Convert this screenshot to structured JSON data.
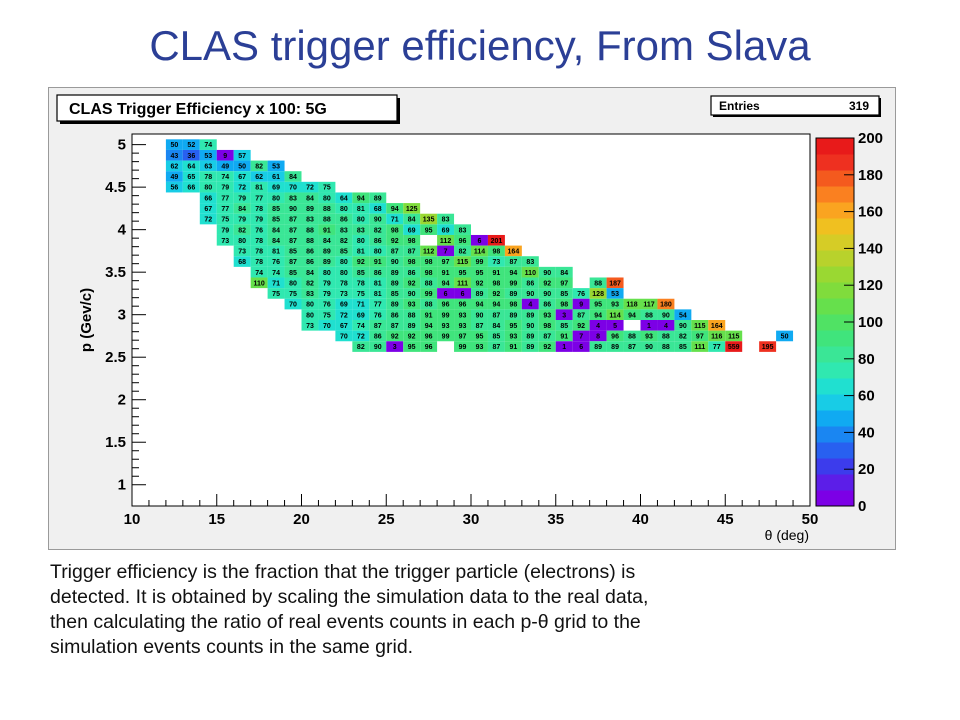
{
  "slide_title": "CLAS trigger efficiency, From Slava",
  "caption_lines": [
    "Trigger efficiency is the fraction that the trigger particle (electrons) is",
    "detected.  It is obtained by scaling the simulation data to the real data,",
    "then calculating the ratio of real events counts in each p-θ grid to the",
    "simulation events counts in the same grid."
  ],
  "chart_data": {
    "type": "heatmap",
    "title": "CLAS Trigger Efficiency x 100: 5G",
    "stats_box": {
      "label": "Entries",
      "value": "319"
    },
    "xlabel": "θ (deg)",
    "ylabel": "p (Gev/c)",
    "xlim": [
      10,
      50
    ],
    "ylim": [
      0.75,
      5.125
    ],
    "x_ticks": [
      10,
      15,
      20,
      25,
      30,
      35,
      40,
      45,
      50
    ],
    "x_tick_labels": [
      "10",
      "15",
      "20",
      "25",
      "30",
      "35",
      "40",
      "45",
      "50"
    ],
    "y_ticks": [
      1,
      1.5,
      2,
      2.5,
      3,
      3.5,
      4,
      4.5,
      5
    ],
    "y_tick_labels": [
      "1",
      "1.5",
      "2",
      "2.5",
      "3",
      "3.5",
      "4",
      "4.5",
      "5"
    ],
    "bin_width_theta": 1,
    "bin_height_p": 0.125,
    "color_scale": {
      "range": [
        0,
        200
      ],
      "ticks": [
        0,
        20,
        40,
        60,
        80,
        100,
        120,
        140,
        160,
        180,
        200
      ],
      "tick_labels": [
        "0",
        "20",
        "40",
        "60",
        "80",
        "100",
        "120",
        "140",
        "160",
        "180",
        "200"
      ]
    },
    "rows": [
      {
        "p": 5.0,
        "theta_start": 12,
        "values": [
          50,
          52,
          74
        ]
      },
      {
        "p": 4.875,
        "theta_start": 12,
        "values": [
          43,
          36,
          53,
          9,
          57
        ]
      },
      {
        "p": 4.75,
        "theta_start": 12,
        "values": [
          62,
          64,
          63,
          49,
          50,
          82,
          53
        ]
      },
      {
        "p": 4.625,
        "theta_start": 12,
        "values": [
          49,
          65,
          78,
          74,
          67,
          62,
          61,
          84
        ]
      },
      {
        "p": 4.5,
        "theta_start": 12,
        "values": [
          56,
          66,
          80,
          79,
          72,
          81,
          69,
          70,
          72,
          75
        ]
      },
      {
        "p": 4.375,
        "theta_start": 14,
        "values": [
          66,
          77,
          79,
          77,
          80,
          83,
          84,
          80,
          64,
          94,
          89
        ]
      },
      {
        "p": 4.25,
        "theta_start": 14,
        "values": [
          67,
          77,
          84,
          78,
          85,
          90,
          89,
          88,
          80,
          81,
          68,
          94,
          125
        ]
      },
      {
        "p": 4.125,
        "theta_start": 14,
        "values": [
          72,
          75,
          79,
          79,
          85,
          87,
          83,
          88,
          86,
          80,
          90,
          71,
          84,
          135,
          83
        ]
      },
      {
        "p": 4.0,
        "theta_start": 15,
        "values": [
          79,
          82,
          76,
          84,
          87,
          88,
          91,
          83,
          83,
          82,
          98,
          69,
          95,
          69,
          83
        ]
      },
      {
        "p": 3.875,
        "theta_start": 15,
        "values": [
          73,
          80,
          78,
          84,
          87,
          88,
          84,
          82,
          80,
          86,
          92,
          98,
          null,
          112,
          96,
          6,
          201
        ]
      },
      {
        "p": 3.75,
        "theta_start": 16,
        "values": [
          73,
          78,
          81,
          85,
          86,
          89,
          85,
          81,
          80,
          87,
          87,
          112,
          7,
          82,
          114,
          98,
          164
        ]
      },
      {
        "p": 3.625,
        "theta_start": 16,
        "values": [
          68,
          78,
          76,
          87,
          86,
          89,
          80,
          92,
          91,
          90,
          98,
          98,
          97,
          115,
          99,
          73,
          87,
          83
        ]
      },
      {
        "p": 3.5,
        "theta_start": 17,
        "values": [
          74,
          74,
          85,
          84,
          80,
          80,
          85,
          86,
          89,
          86,
          98,
          91,
          95,
          95,
          91,
          94,
          110,
          90,
          84
        ]
      },
      {
        "p": 3.375,
        "theta_start": 17,
        "values": [
          110,
          71,
          80,
          82,
          79,
          78,
          78,
          81,
          89,
          92,
          88,
          94,
          111,
          92,
          98,
          99,
          86,
          92,
          97,
          null,
          88,
          187
        ]
      },
      {
        "p": 3.25,
        "theta_start": 18,
        "values": [
          75,
          75,
          83,
          79,
          73,
          75,
          81,
          85,
          90,
          99,
          6,
          6,
          89,
          92,
          89,
          90,
          90,
          85,
          76,
          128,
          53
        ]
      },
      {
        "p": 3.125,
        "theta_start": 19,
        "values": [
          70,
          80,
          76,
          69,
          71,
          77,
          89,
          93,
          88,
          96,
          96,
          94,
          94,
          98,
          4,
          86,
          98,
          9,
          95,
          93,
          118,
          117,
          180
        ]
      },
      {
        "p": 3.0,
        "theta_start": 20,
        "values": [
          80,
          75,
          72,
          69,
          76,
          86,
          88,
          91,
          99,
          93,
          90,
          87,
          89,
          89,
          93,
          3,
          87,
          94,
          114,
          94,
          88,
          90,
          54
        ]
      },
      {
        "p": 2.875,
        "theta_start": 20,
        "values": [
          73,
          70,
          67,
          74,
          87,
          87,
          89,
          94,
          93,
          93,
          87,
          84,
          95,
          90,
          98,
          85,
          92,
          4,
          5,
          null,
          1,
          4,
          90,
          115,
          164
        ]
      },
      {
        "p": 2.75,
        "theta_start": 22,
        "values": [
          70,
          72,
          86,
          92,
          92,
          96,
          99,
          97,
          95,
          85,
          93,
          89,
          87,
          91,
          7,
          8,
          96,
          88,
          93,
          88,
          82,
          97,
          116,
          115,
          null,
          null,
          50
        ]
      },
      {
        "p": 2.625,
        "theta_start": 23,
        "values": [
          82,
          90,
          3,
          95,
          96,
          null,
          99,
          93,
          87,
          91,
          89,
          92,
          1,
          6,
          89,
          89,
          87,
          90,
          88,
          85,
          111,
          77,
          559,
          null,
          195
        ]
      }
    ]
  }
}
